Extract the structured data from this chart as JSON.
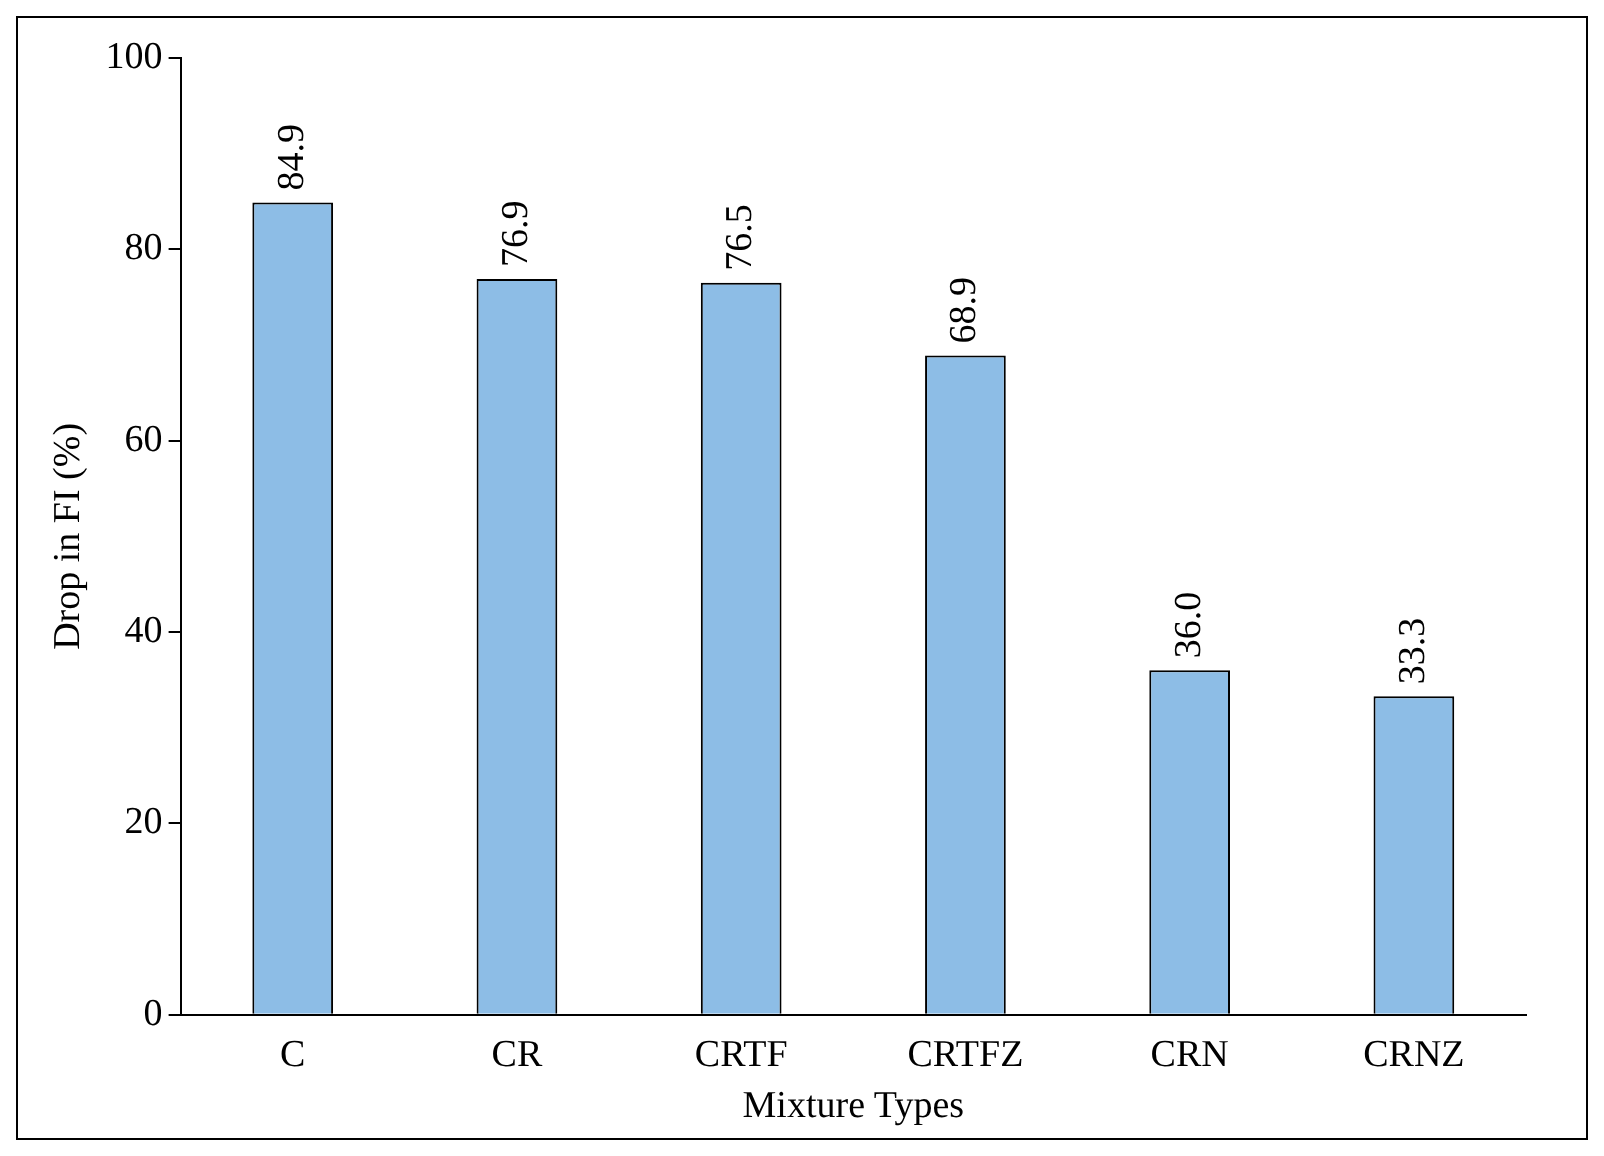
{
  "chart_data": {
    "type": "bar",
    "xlabel": "Mixture Types",
    "ylabel": "Drop in FI (%)",
    "categories": [
      "C",
      "CR",
      "CRTF",
      "CRTFZ",
      "CRN",
      "CRNZ"
    ],
    "values": [
      84.9,
      76.9,
      76.5,
      68.9,
      36.0,
      33.3
    ],
    "value_labels": [
      "84.9",
      "76.9",
      "76.5",
      "68.9",
      "36.0",
      "33.3"
    ],
    "color": "#8dbde6",
    "ylim": [
      0,
      100
    ],
    "yticks": [
      0,
      20,
      40,
      60,
      80,
      100
    ],
    "grid": false,
    "legend": false
  }
}
